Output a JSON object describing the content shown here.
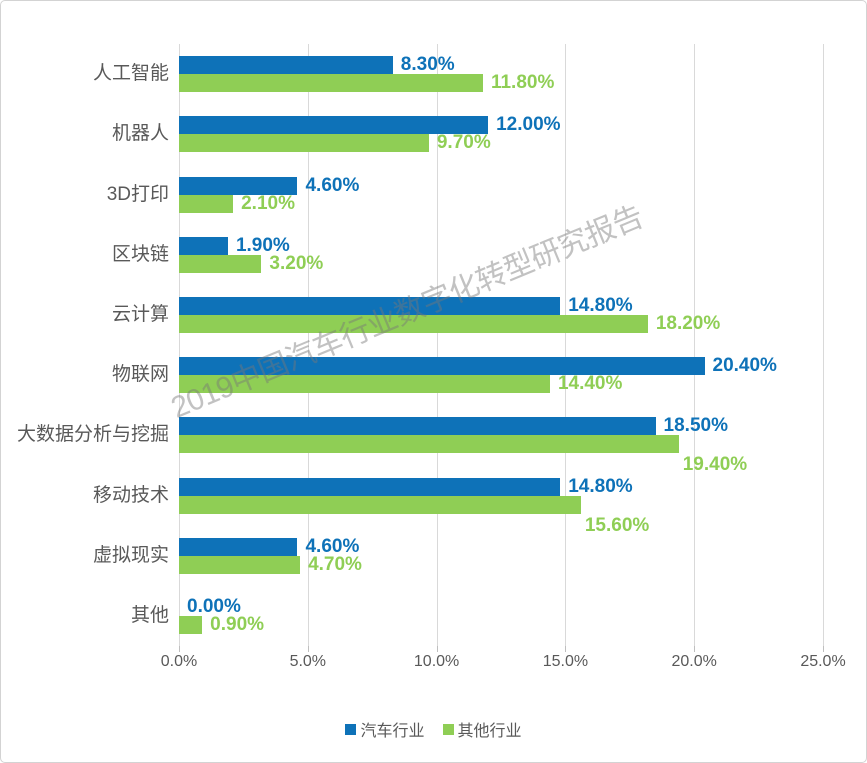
{
  "watermark": "2019中国汽车行业数字化转型研究报告",
  "colors": {
    "series1": "#0e72b8",
    "series2": "#8fce55",
    "grid": "#d9d9d9",
    "tick": "#bfbfbf",
    "text": "#595959",
    "border": "#d3d3d3",
    "watermark_gray": "#c2c2c2"
  },
  "chart_data": {
    "type": "bar",
    "orientation": "horizontal",
    "title": "",
    "xlabel": "",
    "ylabel": "",
    "categories": [
      "人工智能",
      "机器人",
      "3D打印",
      "区块链",
      "云计算",
      "物联网",
      "大数据分析与挖掘",
      "移动技术",
      "虚拟现实",
      "其他"
    ],
    "series": [
      {
        "name": "汽车行业",
        "color": "#0e72b8",
        "values": [
          8.3,
          12.0,
          4.6,
          1.9,
          14.8,
          20.4,
          18.5,
          14.8,
          4.6,
          0.0
        ],
        "labels": [
          "8.30%",
          "12.00%",
          "4.60%",
          "1.90%",
          "14.80%",
          "20.40%",
          "18.50%",
          "14.80%",
          "4.60%",
          "0.00%"
        ],
        "label_below_indices": []
      },
      {
        "name": "其他行业",
        "color": "#8fce55",
        "values": [
          11.8,
          9.7,
          2.1,
          3.2,
          18.2,
          14.4,
          19.4,
          15.6,
          4.7,
          0.9
        ],
        "labels": [
          "11.80%",
          "9.70%",
          "2.10%",
          "3.20%",
          "18.20%",
          "14.40%",
          "19.40%",
          "15.60%",
          "4.70%",
          "0.90%"
        ],
        "label_below_indices": [
          6,
          7
        ]
      }
    ],
    "x_ticks": [
      "0.0%",
      "5.0%",
      "10.0%",
      "15.0%",
      "20.0%",
      "25.0%"
    ],
    "xlim": [
      0,
      25
    ],
    "grid": true,
    "legend_position": "bottom"
  },
  "legend": {
    "items": [
      {
        "label": "汽车行业",
        "color": "#0e72b8"
      },
      {
        "label": "其他行业",
        "color": "#8fce55"
      }
    ]
  }
}
